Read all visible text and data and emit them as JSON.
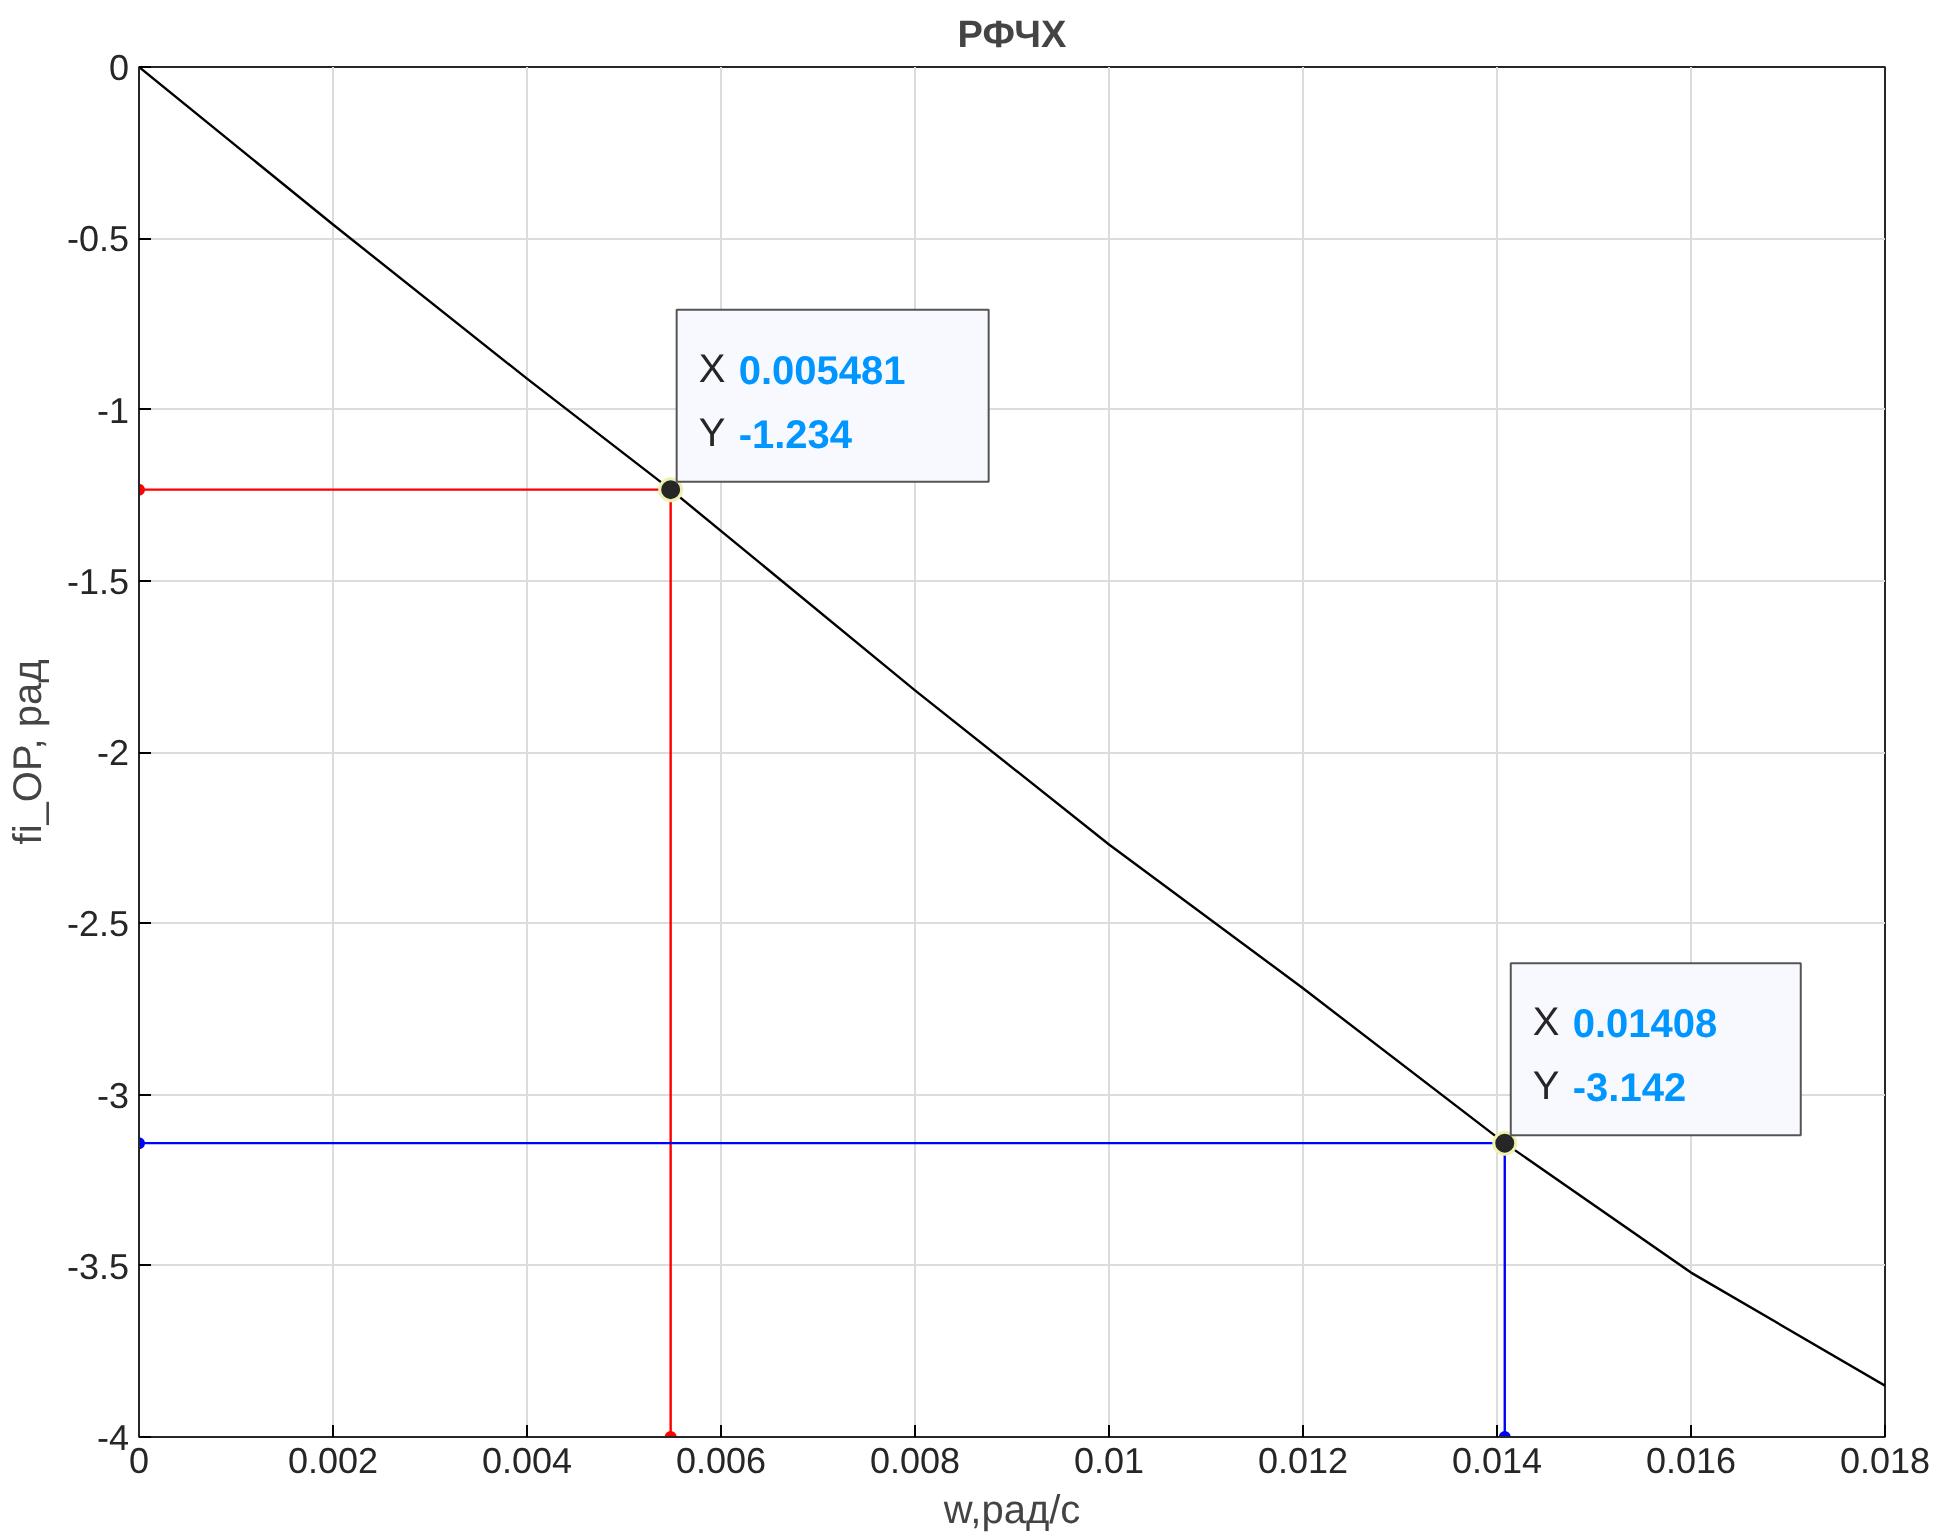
{
  "chart_data": {
    "type": "line",
    "title": "РФЧХ",
    "xlabel": "w,рад/с",
    "ylabel": "fi_OP, рад",
    "xlim": [
      0,
      0.018
    ],
    "ylim": [
      -4,
      0
    ],
    "xticks": [
      0,
      0.002,
      0.004,
      0.006,
      0.008,
      0.01,
      0.012,
      0.014,
      0.016,
      0.018
    ],
    "yticks": [
      -4,
      -3.5,
      -3,
      -2.5,
      -2,
      -1.5,
      -1,
      -0.5,
      0
    ],
    "grid": true,
    "line_style": "solid",
    "series": [
      {
        "color": "#000000",
        "marker": "none",
        "x": [
          0,
          0.002,
          0.004,
          0.005481,
          0.008,
          0.01,
          0.012,
          0.01408,
          0.016,
          0.018
        ],
        "values": [
          0,
          -0.46,
          -0.91,
          -1.234,
          -1.82,
          -2.27,
          -2.69,
          -3.142,
          -3.52,
          -3.85
        ]
      },
      {
        "color": "#ff0000",
        "marker": "circle",
        "x": [
          0,
          0.005481,
          0.005481
        ],
        "values": [
          -1.234,
          -1.234,
          -4
        ]
      },
      {
        "color": "#0000ff",
        "marker": "circle",
        "x": [
          0,
          0.01408,
          0.01408
        ],
        "values": [
          -3.142,
          -3.142,
          -4
        ]
      }
    ],
    "annotations": [
      {
        "text": "X 0.005481\nY -1.234",
        "x": 0.005481,
        "y": -1.234
      },
      {
        "text": "X 0.01408\nY -3.142",
        "x": 0.01408,
        "y": -3.142
      }
    ]
  }
}
